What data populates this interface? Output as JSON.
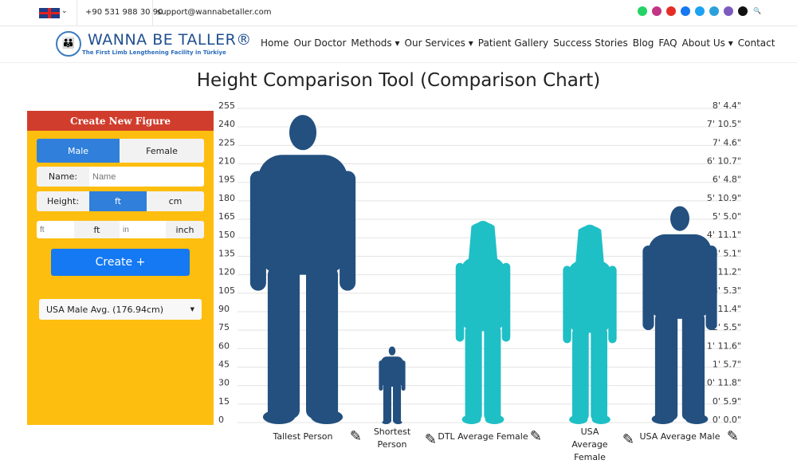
{
  "topbar": {
    "phone": "+90 531 988 30 90",
    "email": "support@wannabetaller.com",
    "social": [
      {
        "icon": "whatsapp-icon",
        "color": "#25d366"
      },
      {
        "icon": "instagram-icon",
        "color": "#c13584"
      },
      {
        "icon": "youtube-icon",
        "color": "#e52d27"
      },
      {
        "icon": "facebook-icon",
        "color": "#1877f2"
      },
      {
        "icon": "twitter-icon",
        "color": "#1da1f2"
      },
      {
        "icon": "telegram-icon",
        "color": "#2aa1da"
      },
      {
        "icon": "viber-icon",
        "color": "#7d5bbe"
      },
      {
        "icon": "tiktok-icon",
        "color": "#111111"
      },
      {
        "icon": "search-icon",
        "color": "#1f6fd1"
      }
    ]
  },
  "logo": {
    "title": "WANNA BE TALLER®",
    "subtitle": "The First Limb Lengthening Facility in Türkiye"
  },
  "nav": [
    "Home",
    "Our Doctor",
    "Methods ▾",
    "Our Services ▾",
    "Patient Gallery",
    "Success Stories",
    "Blog",
    "FAQ",
    "About Us ▾",
    "Contact"
  ],
  "page_title": "Height Comparison Tool (Comparison Chart)",
  "form": {
    "header": "Create New Figure",
    "male": "Male",
    "female": "Female",
    "name_label": "Name:",
    "name_placeholder": "Name",
    "height_label": "Height:",
    "unit_ft": "ft",
    "unit_cm": "cm",
    "ft_placeholder": "ft",
    "ft_addon": "ft",
    "in_placeholder": "in",
    "in_addon": "inch",
    "create": "Create +",
    "preset": "USA Male Avg. (176.94cm)"
  },
  "chart_data": {
    "type": "bar",
    "ylim": [
      0,
      255
    ],
    "left_ticks": [
      "0",
      "15",
      "30",
      "45",
      "60",
      "75",
      "90",
      "105",
      "120",
      "135",
      "150",
      "165",
      "180",
      "195",
      "210",
      "225",
      "240",
      "255"
    ],
    "right_ticks": [
      "0' 0.0\"",
      "0' 5.9\"",
      "0' 11.8\"",
      "1' 5.7\"",
      "1' 11.6\"",
      "2' 5.5\"",
      "2' 11.4\"",
      "3' 5.3\"",
      "3' 11.2\"",
      "4' 5.1\"",
      "4' 11.1\"",
      "5' 5.0\"",
      "5' 10.9\"",
      "6' 4.8\"",
      "6' 10.7\"",
      "7' 4.6\"",
      "7' 10.5\"",
      "8' 4.4\""
    ],
    "figures": [
      {
        "name": "Tallest Person",
        "height_cm": 251,
        "gender": "male",
        "color": "#23507f"
      },
      {
        "name": "Shortest Person",
        "height_cm": 63,
        "gender": "male",
        "color": "#23507f"
      },
      {
        "name": "DTL Average Female",
        "height_cm": 165,
        "gender": "female",
        "color": "#1fbfc6"
      },
      {
        "name": "USA Average Female",
        "height_cm": 162,
        "gender": "female",
        "color": "#1fbfc6"
      },
      {
        "name": "USA Average Male",
        "height_cm": 176.94,
        "gender": "male",
        "color": "#23507f"
      }
    ]
  }
}
